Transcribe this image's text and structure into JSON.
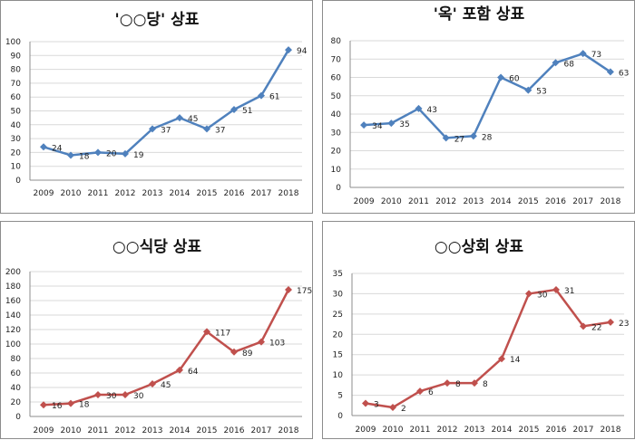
{
  "chart_data": [
    {
      "type": "line",
      "title": "'○○당' 상표",
      "categories": [
        "2009",
        "2010",
        "2011",
        "2012",
        "2013",
        "2014",
        "2015",
        "2016",
        "2017",
        "2018"
      ],
      "series": [
        {
          "values": [
            24,
            18,
            20,
            19,
            37,
            45,
            37,
            51,
            61,
            94
          ]
        }
      ],
      "data_labels": [
        "24",
        "18",
        "20",
        "19",
        "37",
        "45",
        "37",
        "51",
        "61",
        "94"
      ],
      "ylim": [
        0,
        100
      ],
      "yticks": [
        "0",
        "10",
        "20",
        "30",
        "40",
        "50",
        "60",
        "70",
        "80",
        "90",
        "100"
      ],
      "grid": true,
      "color": "#4f81bd"
    },
    {
      "type": "line",
      "title": "'옥' 포함 상표",
      "categories": [
        "2009",
        "2010",
        "2011",
        "2012",
        "2013",
        "2014",
        "2015",
        "2016",
        "2017",
        "2018"
      ],
      "series": [
        {
          "values": [
            34,
            35,
            43,
            27,
            28,
            60,
            53,
            68,
            73,
            63
          ]
        }
      ],
      "data_labels": [
        "34",
        "35",
        "43",
        "27",
        "28",
        "60",
        "53",
        "68",
        "73",
        "63"
      ],
      "ylim": [
        0,
        80
      ],
      "yticks": [
        "0",
        "10",
        "20",
        "30",
        "40",
        "50",
        "60",
        "70",
        "80"
      ],
      "grid": true,
      "color": "#4f81bd"
    },
    {
      "type": "line",
      "title": "○○식당 상표",
      "categories": [
        "2009",
        "2010",
        "2011",
        "2012",
        "2013",
        "2014",
        "2015",
        "2016",
        "2017",
        "2018"
      ],
      "series": [
        {
          "values": [
            16,
            18,
            30,
            30,
            45,
            64,
            117,
            89,
            103,
            175
          ]
        }
      ],
      "data_labels": [
        "16",
        "18",
        "30",
        "30",
        "45",
        "64",
        "117",
        "89",
        "103",
        "175"
      ],
      "ylim": [
        0,
        200
      ],
      "yticks": [
        "0",
        "20",
        "40",
        "60",
        "80",
        "100",
        "120",
        "140",
        "160",
        "180",
        "200"
      ],
      "grid": true,
      "color": "#c0504d"
    },
    {
      "type": "line",
      "title": "○○상회 상표",
      "categories": [
        "2009",
        "2010",
        "2011",
        "2012",
        "2013",
        "2014",
        "2015",
        "2016",
        "2017",
        "2018"
      ],
      "series": [
        {
          "values": [
            3,
            2,
            6,
            8,
            8,
            14,
            30,
            31,
            22,
            23
          ]
        }
      ],
      "data_labels": [
        "3",
        "2",
        "6",
        "8",
        "8",
        "14",
        "30",
        "31",
        "22",
        "23"
      ],
      "ylim": [
        0,
        35
      ],
      "yticks": [
        "0",
        "5",
        "10",
        "15",
        "20",
        "25",
        "30",
        "35"
      ],
      "grid": true,
      "color": "#c0504d"
    }
  ]
}
